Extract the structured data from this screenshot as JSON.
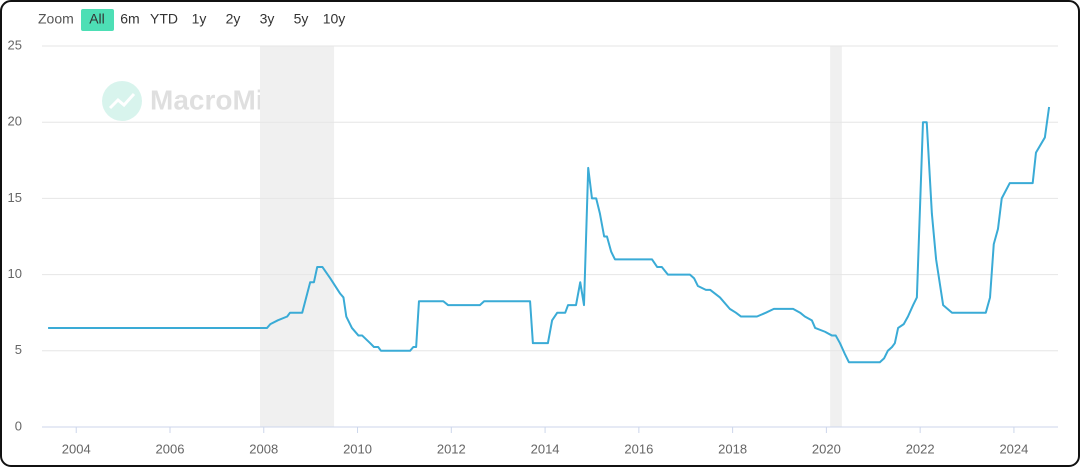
{
  "zoom": {
    "label": "Zoom",
    "options": [
      "All",
      "6m",
      "YTD",
      "1y",
      "2y",
      "3y",
      "5y",
      "10y"
    ],
    "selected": "All"
  },
  "chart_data": {
    "type": "line",
    "watermark": "MacroMicro",
    "x": [
      2003.4,
      2008.07,
      2008.14,
      2008.3,
      2008.5,
      2008.56,
      2008.82,
      2008.99,
      2009.07,
      2009.14,
      2009.25,
      2009.42,
      2009.63,
      2009.7,
      2009.76,
      2009.88,
      2010.02,
      2010.1,
      2010.27,
      2010.35,
      2010.44,
      2010.5,
      2011.12,
      2011.19,
      2011.25,
      2011.31,
      2011.83,
      2011.93,
      2012.61,
      2012.7,
      2013.68,
      2013.74,
      2014.06,
      2014.15,
      2014.26,
      2014.43,
      2014.49,
      2014.66,
      2014.75,
      2014.83,
      2014.92,
      2015.0,
      2015.09,
      2015.17,
      2015.26,
      2015.32,
      2015.41,
      2015.49,
      2016.28,
      2016.39,
      2016.49,
      2016.62,
      2017.09,
      2017.18,
      2017.26,
      2017.43,
      2017.52,
      2017.73,
      2017.94,
      2018.07,
      2018.18,
      2018.52,
      2018.71,
      2018.88,
      2019.29,
      2019.44,
      2019.54,
      2019.69,
      2019.76,
      2019.97,
      2020.12,
      2020.2,
      2020.29,
      2020.4,
      2020.48,
      2021.14,
      2021.23,
      2021.31,
      2021.4,
      2021.46,
      2021.53,
      2021.65,
      2021.74,
      2021.85,
      2021.93,
      2022.06,
      2022.14,
      2022.25,
      2022.34,
      2022.49,
      2022.68,
      2023.4,
      2023.49,
      2023.57,
      2023.66,
      2023.74,
      2023.91,
      2024.4,
      2024.47,
      2024.66,
      2024.75
    ],
    "series": [
      {
        "color": "#3aabd6",
        "values": [
          6.5,
          6.5,
          6.75,
          7.0,
          7.25,
          7.5,
          7.5,
          9.5,
          9.5,
          10.5,
          10.5,
          9.75,
          8.75,
          8.5,
          7.25,
          6.5,
          6.0,
          6.0,
          5.5,
          5.25,
          5.25,
          5.0,
          5.0,
          5.25,
          5.25,
          8.25,
          8.25,
          8.0,
          8.0,
          8.25,
          8.25,
          5.5,
          5.5,
          7.0,
          7.5,
          7.5,
          8.0,
          8.0,
          9.5,
          8.0,
          17.0,
          15.0,
          15.0,
          14.0,
          12.5,
          12.5,
          11.5,
          11.0,
          11.0,
          10.5,
          10.5,
          10.0,
          10.0,
          9.75,
          9.25,
          9.0,
          9.0,
          8.5,
          7.75,
          7.5,
          7.25,
          7.25,
          7.5,
          7.75,
          7.75,
          7.5,
          7.25,
          7.0,
          6.5,
          6.25,
          6.0,
          6.0,
          5.5,
          4.75,
          4.25,
          4.25,
          4.5,
          5.0,
          5.25,
          5.5,
          6.5,
          6.75,
          7.25,
          8.0,
          8.5,
          20.0,
          20.0,
          14.0,
          11.0,
          8.0,
          7.5,
          7.5,
          8.5,
          12.0,
          13.0,
          15.0,
          16.0,
          16.0,
          18.0,
          19.0,
          21.0
        ]
      }
    ],
    "shaded": [
      [
        2007.92,
        2009.5
      ],
      [
        2020.08,
        2020.33
      ]
    ],
    "shade_color": "#f0f0f0",
    "xlim": [
      2003.27,
      2024.94
    ],
    "xticks": [
      2004,
      2006,
      2008,
      2010,
      2012,
      2014,
      2016,
      2018,
      2020,
      2022,
      2024
    ],
    "ylim": [
      0,
      25
    ],
    "yticks": [
      0,
      5,
      10,
      15,
      20,
      25
    ],
    "grid": true
  }
}
